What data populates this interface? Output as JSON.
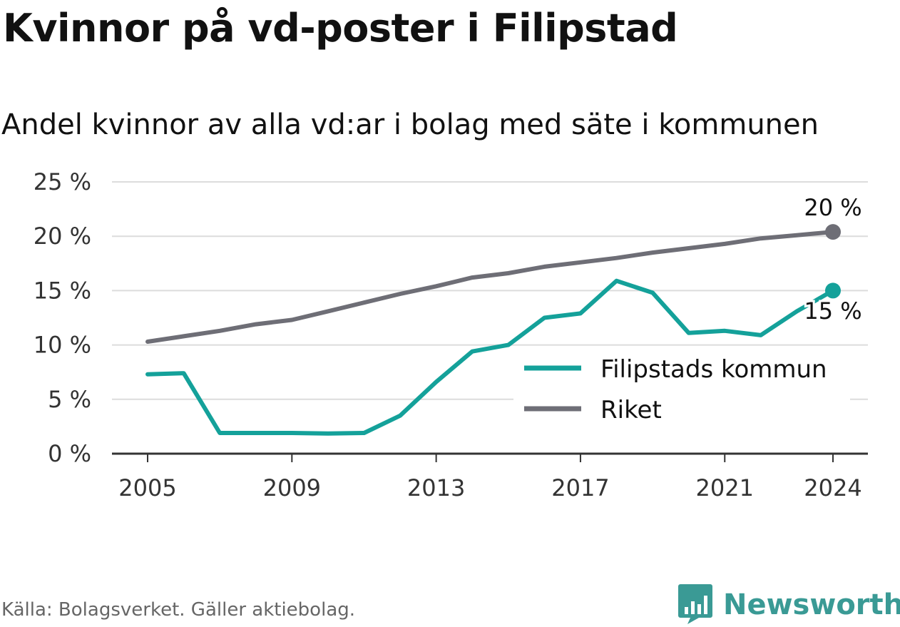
{
  "title": "Kvinnor på vd-poster i Filipstad",
  "subtitle": "Andel kvinnor av alla vd:ar i bolag med säte i kommunen",
  "source": "Källa: Bolagsverket. Gäller aktiebolag.",
  "brand": "Newsworthy",
  "colors": {
    "kommun": "#14a19a",
    "riket": "#6e6e76",
    "brand": "#3a9a95"
  },
  "chart_data": {
    "type": "line",
    "title": "Kvinnor på vd-poster i Filipstad",
    "subtitle": "Andel kvinnor av alla vd:ar i bolag med säte i kommunen",
    "x": [
      2005,
      2006,
      2007,
      2008,
      2009,
      2010,
      2011,
      2012,
      2013,
      2014,
      2015,
      2016,
      2017,
      2018,
      2019,
      2020,
      2021,
      2022,
      2023,
      2024
    ],
    "x_ticks": [
      "2005",
      "2009",
      "2013",
      "2017",
      "2021",
      "2024"
    ],
    "y_ticks": [
      "0 %",
      "5 %",
      "10 %",
      "15 %",
      "20 %",
      "25 %"
    ],
    "ylim": [
      0,
      25
    ],
    "grid": true,
    "legend_position": "lower-right",
    "series": [
      {
        "name": "Filipstads kommun",
        "color": "#14a19a",
        "values": [
          7.3,
          7.4,
          1.9,
          1.9,
          1.9,
          1.85,
          1.9,
          3.5,
          6.6,
          9.4,
          10.0,
          12.5,
          12.9,
          15.9,
          14.8,
          11.1,
          11.3,
          10.9,
          13.1,
          15.0
        ],
        "end_label": "15 %"
      },
      {
        "name": "Riket",
        "color": "#6e6e76",
        "values": [
          10.3,
          10.8,
          11.3,
          11.9,
          12.3,
          13.1,
          13.9,
          14.7,
          15.4,
          16.2,
          16.6,
          17.2,
          17.6,
          18.0,
          18.5,
          18.9,
          19.3,
          19.8,
          20.1,
          20.4
        ],
        "end_label": "20 %"
      }
    ]
  }
}
